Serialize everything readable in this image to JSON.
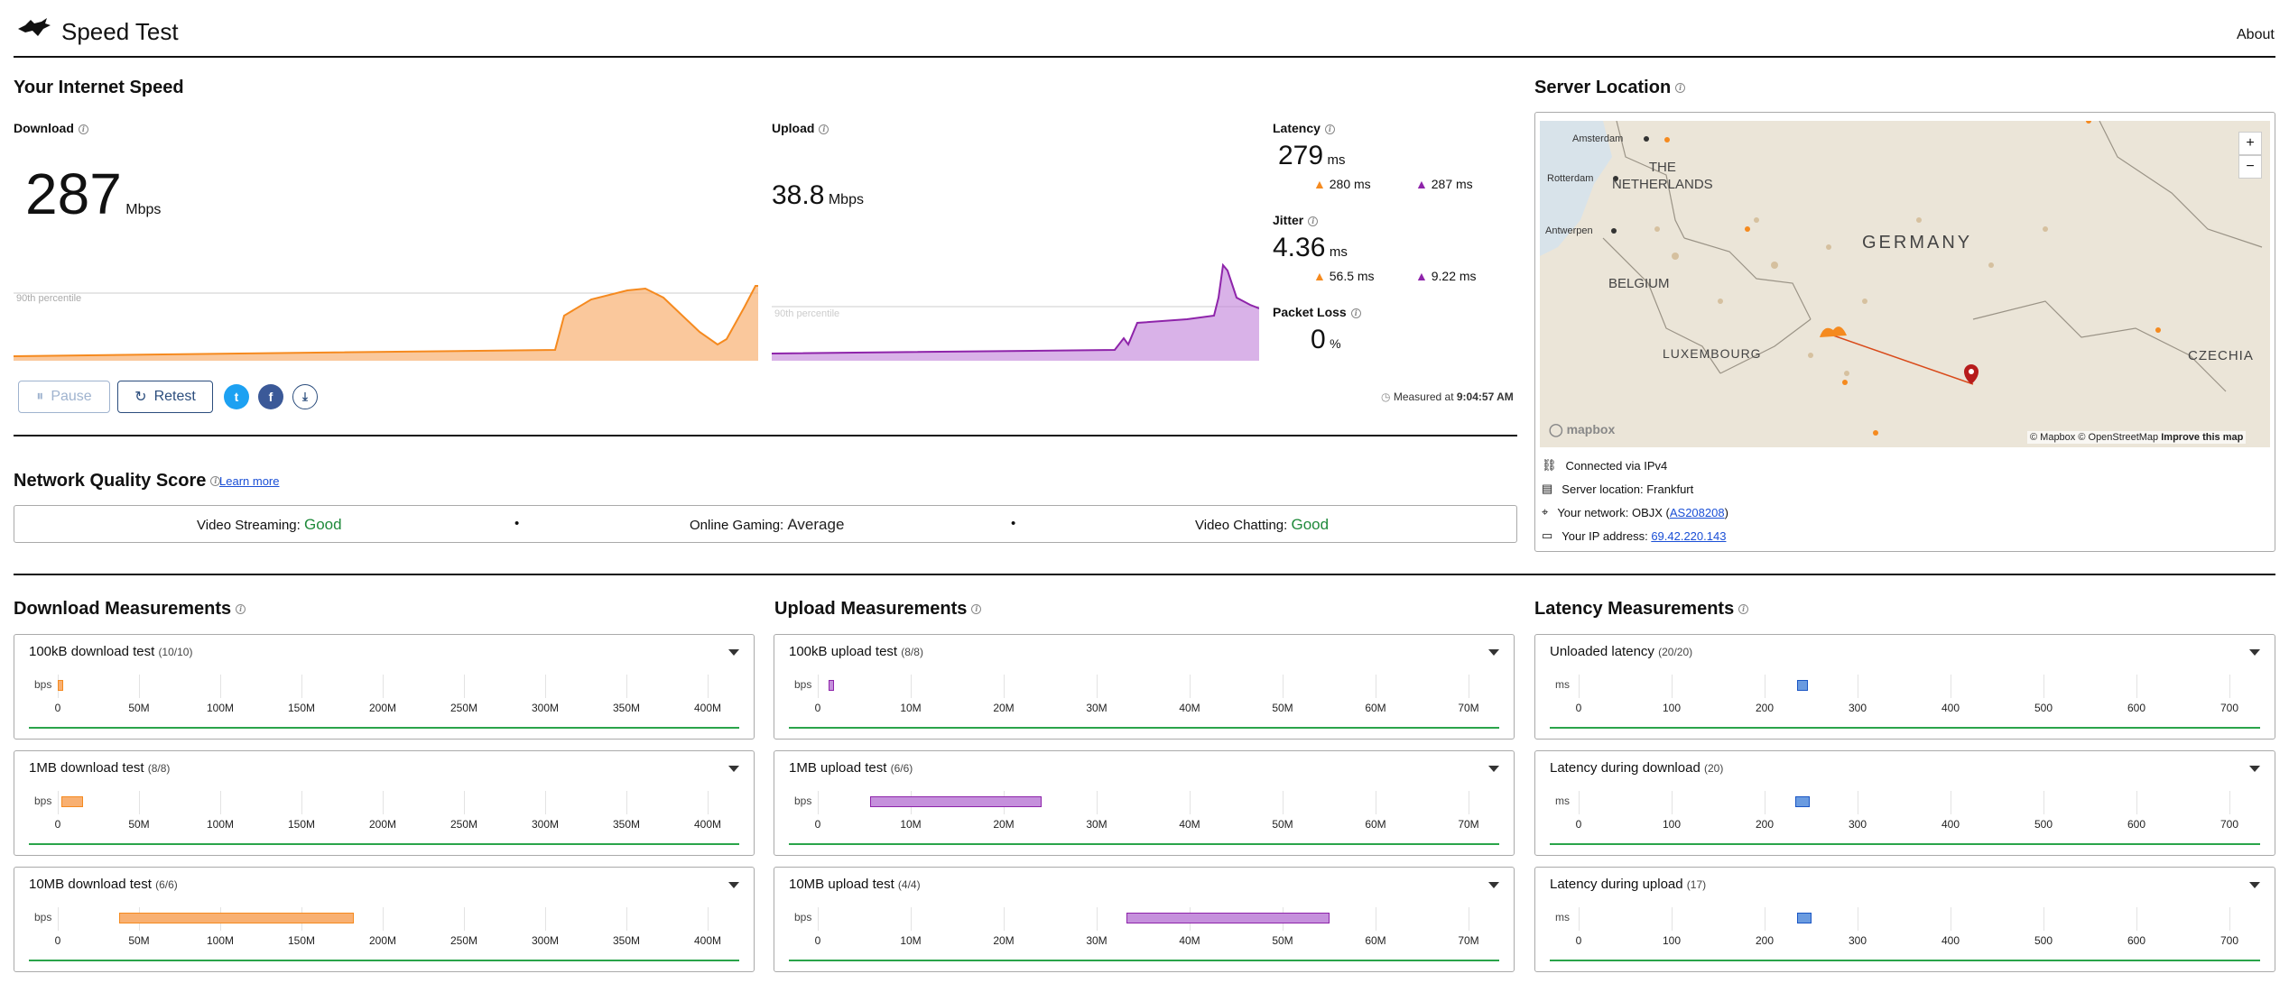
{
  "header": {
    "app_title": "Speed Test",
    "about_link": "About"
  },
  "speed": {
    "section_title": "Your Internet Speed",
    "download": {
      "label": "Download",
      "value": "287",
      "unit": "Mbps",
      "percentile_label": "90th percentile"
    },
    "upload": {
      "label": "Upload",
      "value": "38.8",
      "unit": "Mbps",
      "percentile_label": "90th percentile"
    },
    "latency": {
      "label": "Latency",
      "value": "279",
      "unit": "ms",
      "down": "280",
      "down_unit": "ms",
      "up": "287",
      "up_unit": "ms"
    },
    "jitter": {
      "label": "Jitter",
      "value": "4.36",
      "unit": "ms",
      "down": "56.5",
      "down_unit": "ms",
      "up": "9.22",
      "up_unit": "ms"
    },
    "packet_loss": {
      "label": "Packet Loss",
      "value": "0",
      "unit": "%"
    },
    "measured_prefix": "Measured at",
    "measured_time": "9:04:57 AM"
  },
  "controls": {
    "pause": "Pause",
    "retest": "Retest"
  },
  "quality": {
    "section_title": "Network Quality Score",
    "learn_more": "Learn more",
    "items": [
      {
        "label": "Video Streaming:",
        "value": "Good"
      },
      {
        "label": "Online Gaming:",
        "value": "Average"
      },
      {
        "label": "Video Chatting:",
        "value": "Good"
      }
    ],
    "separator": "•"
  },
  "server": {
    "section_title": "Server Location",
    "map_labels": {
      "netherlands_1": "THE",
      "netherlands_2": "NETHERLANDS",
      "germany": "GERMANY",
      "belgium": "BELGIUM",
      "luxembourg": "LUXEMBOURG",
      "czechia": "CZECHIA",
      "amsterdam": "Amsterdam",
      "rotterdam": "Rotterdam",
      "antwerpen": "Antwerpen"
    },
    "map_attribution": "© Mapbox © OpenStreetMap",
    "map_improve": "Improve this map",
    "map_logo": "mapbox",
    "zoom_in": "+",
    "zoom_out": "−",
    "connected": "Connected via IPv4",
    "location_label": "Server location: ",
    "location_value": "Frankfurt",
    "network_label": "Your network: ",
    "network_value": "OBJX (",
    "network_link": "AS208208",
    "network_close": ")",
    "ip_label": "Your IP address: ",
    "ip_link": "69.42.220.143"
  },
  "measurements": {
    "download_title": "Download Measurements",
    "upload_title": "Upload Measurements",
    "latency_title": "Latency Measurements",
    "download_panels": [
      {
        "name": "100kB download test",
        "count": "(10/10)"
      },
      {
        "name": "1MB download test",
        "count": "(8/8)"
      },
      {
        "name": "10MB download test",
        "count": "(6/6)"
      }
    ],
    "upload_panels": [
      {
        "name": "100kB upload test",
        "count": "(8/8)"
      },
      {
        "name": "1MB upload test",
        "count": "(6/6)"
      },
      {
        "name": "10MB upload test",
        "count": "(4/4)"
      }
    ],
    "latency_panels": [
      {
        "name": "Unloaded latency",
        "count": "(20/20)"
      },
      {
        "name": "Latency during download",
        "count": "(20)"
      },
      {
        "name": "Latency during upload",
        "count": "(17)"
      }
    ],
    "download_axis": {
      "unit": "bps",
      "ticks": [
        "0",
        "50M",
        "100M",
        "150M",
        "200M",
        "250M",
        "300M",
        "350M",
        "400M"
      ]
    },
    "upload_axis": {
      "unit": "bps",
      "ticks": [
        "0",
        "10M",
        "20M",
        "30M",
        "40M",
        "50M",
        "60M",
        "70M"
      ]
    },
    "latency_axis": {
      "unit": "ms",
      "ticks": [
        "0",
        "100",
        "200",
        "300",
        "400",
        "500",
        "600",
        "700"
      ]
    }
  },
  "colors": {
    "download": "#f58a1f",
    "upload": "#8e24aa",
    "latency": "#1a56c4",
    "good": "#1f8a3b",
    "accent": "#2b4d7d"
  }
}
